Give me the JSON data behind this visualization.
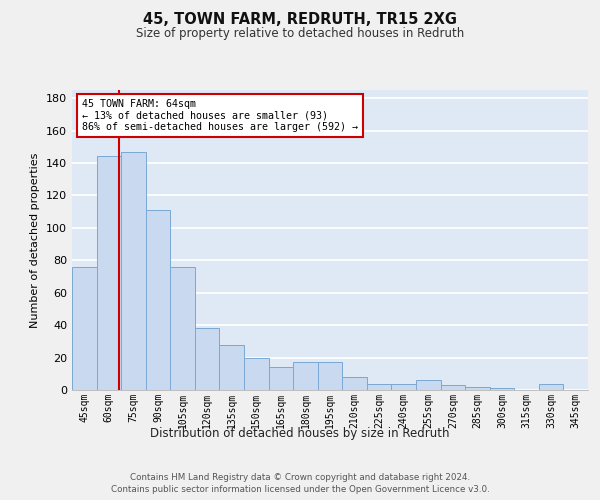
{
  "title1": "45, TOWN FARM, REDRUTH, TR15 2XG",
  "title2": "Size of property relative to detached houses in Redruth",
  "xlabel": "Distribution of detached houses by size in Redruth",
  "ylabel": "Number of detached properties",
  "categories": [
    "45sqm",
    "60sqm",
    "75sqm",
    "90sqm",
    "105sqm",
    "120sqm",
    "135sqm",
    "150sqm",
    "165sqm",
    "180sqm",
    "195sqm",
    "210sqm",
    "225sqm",
    "240sqm",
    "255sqm",
    "270sqm",
    "285sqm",
    "300sqm",
    "315sqm",
    "330sqm",
    "345sqm"
  ],
  "values": [
    76,
    144,
    147,
    111,
    76,
    38,
    28,
    20,
    14,
    17,
    17,
    8,
    4,
    4,
    6,
    3,
    2,
    1,
    0,
    4,
    0
  ],
  "bar_color": "#c9d9f0",
  "bar_edge_color": "#7aa8d4",
  "background_color": "#dfe8f5",
  "grid_color": "#ffffff",
  "red_line_x": 1.43,
  "annotation_text": "45 TOWN FARM: 64sqm\n← 13% of detached houses are smaller (93)\n86% of semi-detached houses are larger (592) →",
  "annotation_box_color": "#ffffff",
  "annotation_box_edge_color": "#cc0000",
  "ylim": [
    0,
    185
  ],
  "yticks": [
    0,
    20,
    40,
    60,
    80,
    100,
    120,
    140,
    160,
    180
  ],
  "fig_facecolor": "#f0f0f0",
  "footer1": "Contains HM Land Registry data © Crown copyright and database right 2024.",
  "footer2": "Contains public sector information licensed under the Open Government Licence v3.0."
}
